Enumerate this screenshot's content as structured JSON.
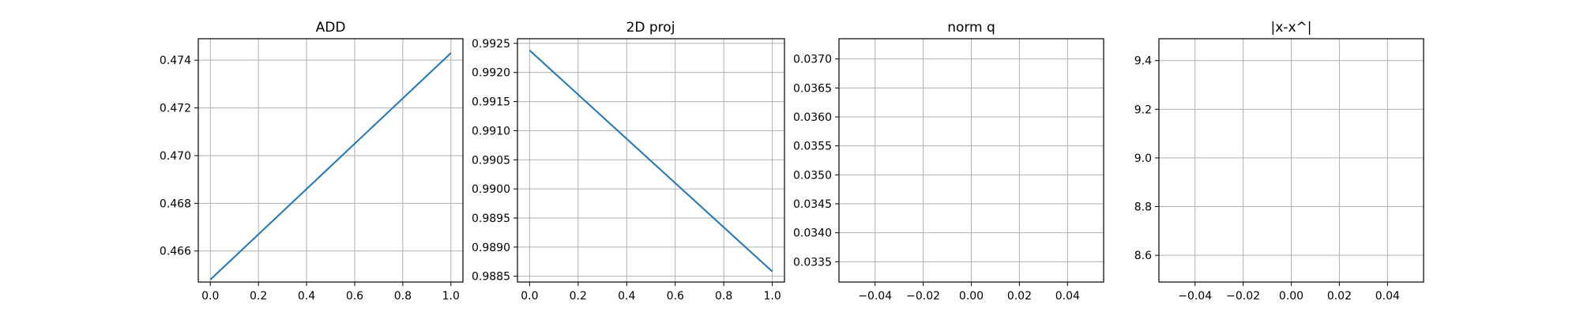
{
  "chart_data": [
    {
      "type": "line",
      "title": "ADD",
      "xlim": [
        -0.05,
        1.05
      ],
      "ylim": [
        0.4647,
        0.4749
      ],
      "xticks": [
        0.0,
        0.2,
        0.4,
        0.6,
        0.8,
        1.0
      ],
      "xtick_labels": [
        "0.0",
        "0.2",
        "0.4",
        "0.6",
        "0.8",
        "1.0"
      ],
      "yticks": [
        0.466,
        0.468,
        0.47,
        0.472,
        0.474
      ],
      "ytick_labels": [
        "0.466",
        "0.468",
        "0.470",
        "0.472",
        "0.474"
      ],
      "grid": true,
      "series": [
        {
          "x": [
            0,
            1
          ],
          "y": [
            0.4648,
            0.4743
          ]
        }
      ]
    },
    {
      "type": "line",
      "title": "2D proj",
      "xlim": [
        -0.05,
        1.05
      ],
      "ylim": [
        0.9884,
        0.99258
      ],
      "xticks": [
        0.0,
        0.2,
        0.4,
        0.6,
        0.8,
        1.0
      ],
      "xtick_labels": [
        "0.0",
        "0.2",
        "0.4",
        "0.6",
        "0.8",
        "1.0"
      ],
      "yticks": [
        0.9885,
        0.989,
        0.9895,
        0.99,
        0.9905,
        0.991,
        0.9915,
        0.992,
        0.9925
      ],
      "ytick_labels": [
        "0.9885",
        "0.9890",
        "0.9895",
        "0.9900",
        "0.9905",
        "0.9910",
        "0.9915",
        "0.9920",
        "0.9925"
      ],
      "grid": true,
      "series": [
        {
          "x": [
            0,
            1
          ],
          "y": [
            0.99238,
            0.98858
          ]
        }
      ]
    },
    {
      "type": "line",
      "title": "norm q",
      "xlim": [
        -0.055,
        0.055
      ],
      "ylim": [
        0.03315,
        0.03735
      ],
      "xticks": [
        -0.04,
        -0.02,
        0.0,
        0.02,
        0.04
      ],
      "xtick_labels": [
        "−0.04",
        "−0.02",
        "0.00",
        "0.02",
        "0.04"
      ],
      "yticks": [
        0.0335,
        0.034,
        0.0345,
        0.035,
        0.0355,
        0.036,
        0.0365,
        0.037
      ],
      "ytick_labels": [
        "0.0335",
        "0.0340",
        "0.0345",
        "0.0350",
        "0.0355",
        "0.0360",
        "0.0365",
        "0.0370"
      ],
      "grid": true,
      "series": []
    },
    {
      "type": "line",
      "title": "|x-x^|",
      "xlim": [
        -0.055,
        0.055
      ],
      "ylim": [
        8.49,
        9.49
      ],
      "xticks": [
        -0.04,
        -0.02,
        0.0,
        0.02,
        0.04
      ],
      "xtick_labels": [
        "−0.04",
        "−0.02",
        "0.00",
        "0.02",
        "0.04"
      ],
      "yticks": [
        8.6,
        8.8,
        9.0,
        9.2,
        9.4
      ],
      "ytick_labels": [
        "8.6",
        "8.8",
        "9.0",
        "9.2",
        "9.4"
      ],
      "grid": true,
      "series": []
    }
  ],
  "colors": {
    "series": "#1f77b4",
    "grid": "#b0b0b0",
    "axes": "#000000",
    "background": "#ffffff"
  }
}
